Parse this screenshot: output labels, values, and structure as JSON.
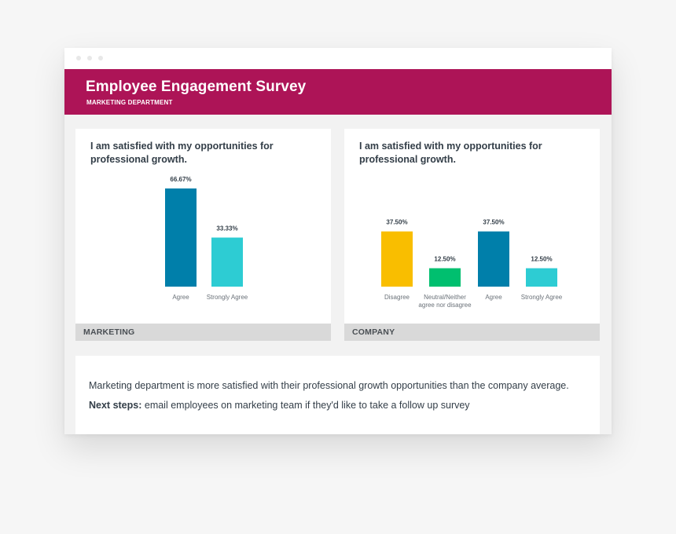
{
  "header": {
    "title": "Employee Engagement Survey",
    "subtitle": "MARKETING DEPARTMENT"
  },
  "panels": [
    {
      "question": "I am satisfied with my opportunities for professional growth.",
      "footer_label": "MARKETING"
    },
    {
      "question": "I am satisfied with my opportunities for professional growth.",
      "footer_label": "COMPANY"
    }
  ],
  "notes": {
    "line1": "Marketing department is more satisfied with their professional growth opportunities than the company average.",
    "next_steps_label": "Next steps:",
    "next_steps_text": " email employees on marketing team if they'd like to take a follow up survey"
  },
  "colors": {
    "header": "#ad1457",
    "disagree": "#f9be00",
    "neutral": "#00bf6f",
    "agree": "#007faa",
    "strongly_agree": "#2dccd3"
  },
  "chart_data": [
    {
      "type": "bar",
      "title": "I am satisfied with my opportunities for professional growth.",
      "categories": [
        "Agree",
        "Strongly Agree"
      ],
      "values": [
        66.67,
        33.33
      ],
      "value_labels": [
        "66.67%",
        "33.33%"
      ],
      "colors": [
        "#007faa",
        "#2dccd3"
      ],
      "ylim": [
        0,
        66.67
      ],
      "grid": false,
      "footer": "MARKETING"
    },
    {
      "type": "bar",
      "title": "I am satisfied with my opportunities for professional growth.",
      "categories": [
        "Disagree",
        "Neutral/Neither agree nor disagree",
        "Agree",
        "Strongly Agree"
      ],
      "category_lines": [
        [
          "Disagree"
        ],
        [
          "Neutral/Neither",
          "agree nor disagree"
        ],
        [
          "Agree"
        ],
        [
          "Strongly Agree"
        ]
      ],
      "values": [
        37.5,
        12.5,
        37.5,
        12.5
      ],
      "value_labels": [
        "37.50%",
        "12.50%",
        "37.50%",
        "12.50%"
      ],
      "colors": [
        "#f9be00",
        "#00bf6f",
        "#007faa",
        "#2dccd3"
      ],
      "ylim": [
        0,
        66.67
      ],
      "grid": false,
      "footer": "COMPANY"
    }
  ]
}
